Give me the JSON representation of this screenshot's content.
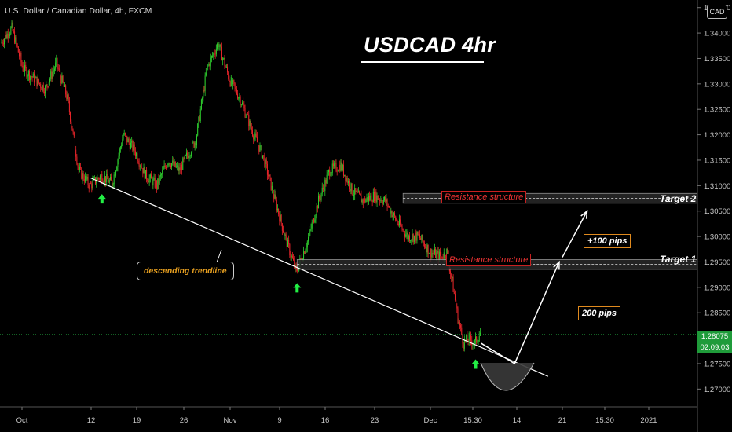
{
  "header": {
    "symbol_line": "U.S. Dollar / Canadian Dollar, 4h, FXCM"
  },
  "title": "USDCAD 4hr",
  "currency_badge": "CAD",
  "annotations": {
    "resistance_upper": "Resistance structure",
    "resistance_lower": "Resistance structure",
    "target_2": "Target 2",
    "target_1": "Target 1",
    "pips_100": "+100 pips",
    "pips_200": "200 pips",
    "trendline": "descending trendline"
  },
  "price_tags": {
    "last_price": "1.28075",
    "countdown": "02:09:03"
  },
  "colors": {
    "up": "#2ecc2e",
    "down": "#e8252a",
    "arrow": "#22ee44",
    "axis_text": "#c8c8c8"
  },
  "chart_data": {
    "type": "candlestick",
    "title": "USDCAD 4hr",
    "y_ticks": [
      "1.34500",
      "1.34000",
      "1.33500",
      "1.33000",
      "1.32500",
      "1.32000",
      "1.31500",
      "1.31000",
      "1.30500",
      "1.30000",
      "1.29500",
      "1.29000",
      "1.28500",
      "1.28000",
      "1.27500",
      "1.27000"
    ],
    "y_tick_values": [
      1.345,
      1.34,
      1.335,
      1.33,
      1.325,
      1.32,
      1.315,
      1.31,
      1.305,
      1.3,
      1.295,
      1.29,
      1.285,
      1.28,
      1.275,
      1.27
    ],
    "ylim": [
      1.2665,
      1.3465
    ],
    "x_ticks": [
      "Oct",
      "12",
      "19",
      "26",
      "Nov",
      "9",
      "16",
      "23",
      "Dec",
      "15:30",
      "14",
      "21",
      "15:30",
      "2021"
    ],
    "price_path": [
      [
        0,
        1.338
      ],
      [
        2,
        1.341
      ],
      [
        4,
        1.333
      ],
      [
        6,
        1.331
      ],
      [
        8,
        1.329
      ],
      [
        10,
        1.334
      ],
      [
        12,
        1.327
      ],
      [
        14,
        1.313
      ],
      [
        16,
        1.31
      ],
      [
        18,
        1.312
      ],
      [
        20,
        1.3105
      ],
      [
        22,
        1.32
      ],
      [
        24,
        1.317
      ],
      [
        26,
        1.312
      ],
      [
        28,
        1.31
      ],
      [
        30,
        1.315
      ],
      [
        32,
        1.313
      ],
      [
        34,
        1.317
      ],
      [
        35,
        1.319
      ],
      [
        37,
        1.333
      ],
      [
        39,
        1.338
      ],
      [
        41,
        1.331
      ],
      [
        43,
        1.327
      ],
      [
        45,
        1.321
      ],
      [
        47,
        1.316
      ],
      [
        49,
        1.308
      ],
      [
        51,
        1.3
      ],
      [
        53,
        1.293
      ],
      [
        55,
        1.299
      ],
      [
        57,
        1.307
      ],
      [
        59,
        1.313
      ],
      [
        61,
        1.314
      ],
      [
        63,
        1.309
      ],
      [
        65,
        1.307
      ],
      [
        67,
        1.308
      ],
      [
        69,
        1.307
      ],
      [
        71,
        1.303
      ],
      [
        73,
        1.3
      ],
      [
        75,
        1.3
      ],
      [
        77,
        1.297
      ],
      [
        79,
        1.296
      ],
      [
        80,
        1.297
      ],
      [
        81,
        1.291
      ],
      [
        82,
        1.284
      ],
      [
        83,
        1.279
      ],
      [
        84,
        1.28
      ],
      [
        85,
        1.279
      ],
      [
        86,
        1.281
      ]
    ],
    "support_bounces": [
      {
        "index": 18,
        "price": 1.3105
      },
      {
        "index": 53,
        "price": 1.293
      },
      {
        "index": 85,
        "price": 1.278
      }
    ],
    "trendline": {
      "from": [
        16,
        1.3115
      ],
      "to": [
        98,
        1.2725
      ]
    },
    "resistance_zones": [
      {
        "label": "Resistance structure",
        "low": 1.307,
        "high": 1.308,
        "from_index": 72
      },
      {
        "label": "Resistance structure",
        "low": 1.294,
        "high": 1.295,
        "from_index": 53
      }
    ],
    "last_price": 1.28075,
    "projection": [
      [
        86,
        1.279
      ],
      [
        92,
        1.275
      ],
      [
        100,
        1.295
      ],
      [
        105,
        1.305
      ]
    ]
  }
}
